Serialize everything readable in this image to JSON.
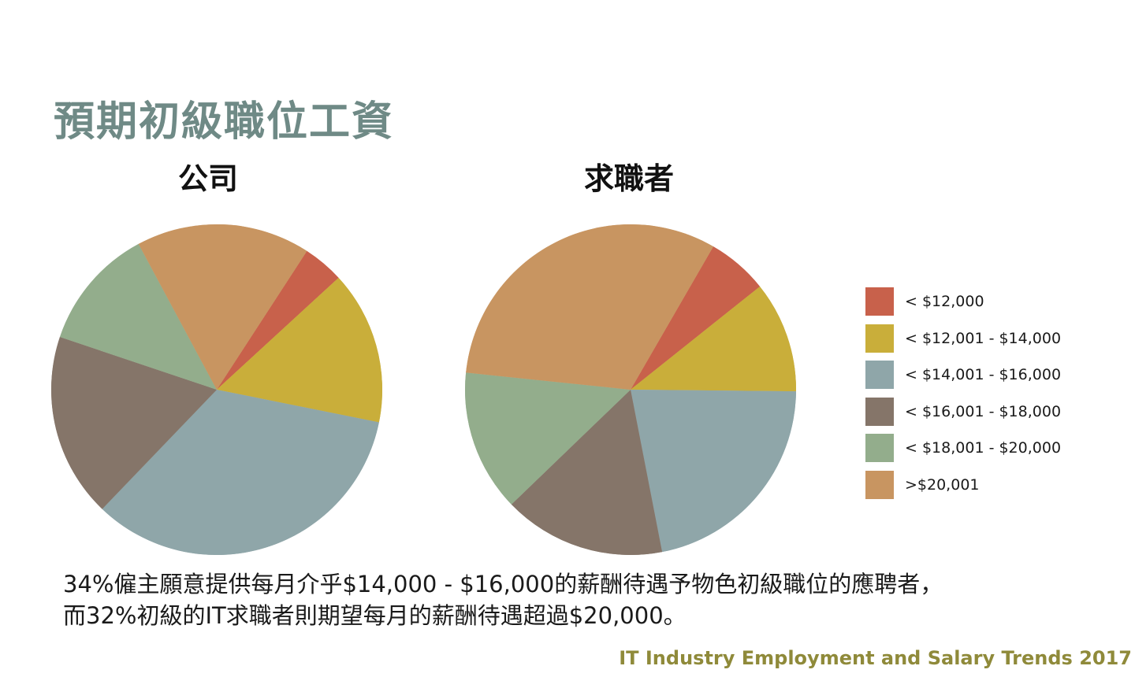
{
  "slide": {
    "title": "預期初級職位工資",
    "caption_line1": "34%僱主願意提供每月介乎$14,000 - $16,000的薪酬待遇予物色初級職位的應聘者，",
    "caption_line2": "而32%初級的IT求職者則期望每月的薪酬待遇超過$20,000。",
    "footer": "IT Industry Employment and Salary Trends 2017"
  },
  "legend": [
    {
      "label": "< $12,000",
      "color": "#c8614b"
    },
    {
      "label": "< $12,001 - $14,000",
      "color": "#c9ae3a"
    },
    {
      "label": "< $14,001 - $16,000",
      "color": "#8fa6a9"
    },
    {
      "label": "< $16,001 - $18,000",
      "color": "#857569"
    },
    {
      "label": "< $18,001 - $20,000",
      "color": "#93ad8c"
    },
    {
      "label": ">$20,001",
      "color": "#c89561"
    }
  ],
  "chart_data": [
    {
      "type": "pie",
      "title": "公司",
      "categories": [
        "< $12,000",
        "< $12,001 - $14,000",
        "< $14,001 - $16,000",
        "< $16,001 - $18,000",
        "< $18,001 - $20,000",
        ">$20,001"
      ],
      "values": [
        4,
        15,
        34,
        18,
        12,
        17
      ],
      "start_angle": 57
    },
    {
      "type": "pie",
      "title": "求職者",
      "categories": [
        "< $12,000",
        "< $12,001 - $14,000",
        "< $14,001 - $16,000",
        "< $16,001 - $18,000",
        "< $18,001 - $20,000",
        ">$20,001"
      ],
      "values": [
        6,
        11,
        22,
        16,
        14,
        32
      ],
      "start_angle": 60
    }
  ]
}
